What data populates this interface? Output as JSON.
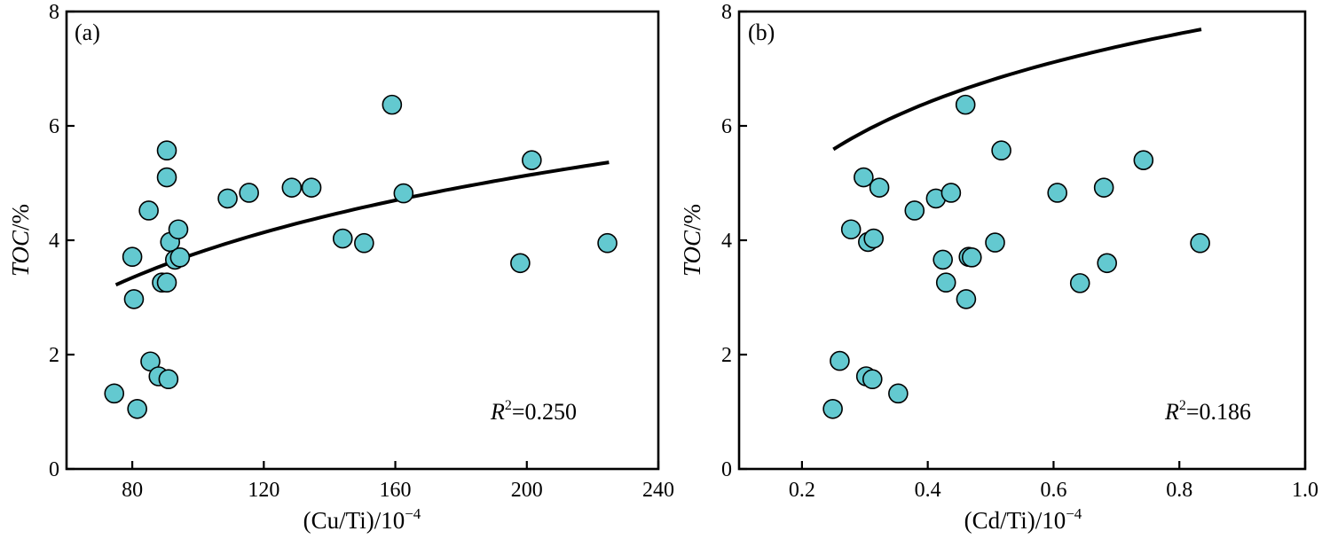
{
  "chart_data": [
    {
      "type": "scatter",
      "panel_label": "(a)",
      "xlabel": "(Cu/Ti)/10",
      "xlabel_exp": "−4",
      "ylabel_italic": "TOC",
      "ylabel_rest": "/%",
      "xlim": [
        60,
        240
      ],
      "ylim": [
        0,
        8
      ],
      "xticks": [
        80,
        120,
        160,
        200,
        240
      ],
      "yticks": [
        0,
        2,
        4,
        6,
        8
      ],
      "marker_color": "#63c9d0",
      "annotation": {
        "var": "R",
        "sup": "2",
        "text": "=0.250"
      },
      "points": [
        [
          74.5,
          1.32
        ],
        [
          80.0,
          3.71
        ],
        [
          80.5,
          2.97
        ],
        [
          81.5,
          1.05
        ],
        [
          85.0,
          4.52
        ],
        [
          85.5,
          1.88
        ],
        [
          88.0,
          1.62
        ],
        [
          89.0,
          3.26
        ],
        [
          90.5,
          5.57
        ],
        [
          90.5,
          5.1
        ],
        [
          90.5,
          3.26
        ],
        [
          91.0,
          1.57
        ],
        [
          91.5,
          3.97
        ],
        [
          93.0,
          3.66
        ],
        [
          94.0,
          4.19
        ],
        [
          94.5,
          3.7
        ],
        [
          109.0,
          4.73
        ],
        [
          115.5,
          4.83
        ],
        [
          128.5,
          4.92
        ],
        [
          134.5,
          4.92
        ],
        [
          144.0,
          4.03
        ],
        [
          150.5,
          3.95
        ],
        [
          159.0,
          6.37
        ],
        [
          162.5,
          4.82
        ],
        [
          198.0,
          3.6
        ],
        [
          201.5,
          5.4
        ],
        [
          224.5,
          3.95
        ]
      ],
      "fit": {
        "model": "log",
        "a": 3.22,
        "b": 1.95,
        "x0": 75,
        "x1": 225
      }
    },
    {
      "type": "scatter",
      "panel_label": "(b)",
      "xlabel": "(Cd/Ti)/10",
      "xlabel_exp": "−4",
      "ylabel_italic": "TOC",
      "ylabel_rest": "/%",
      "xlim": [
        0.1,
        1.0
      ],
      "ylim": [
        0,
        8
      ],
      "xticks": [
        "0.2",
        "0.4",
        "0.6",
        "0.8",
        "1.0"
      ],
      "yticks": [
        0,
        2,
        4,
        6,
        8
      ],
      "marker_color": "#63c9d0",
      "annotation": {
        "var": "R",
        "sup": "2",
        "text": "=0.186"
      },
      "points": [
        [
          0.249,
          1.05
        ],
        [
          0.26,
          1.89
        ],
        [
          0.278,
          4.19
        ],
        [
          0.298,
          5.1
        ],
        [
          0.302,
          1.62
        ],
        [
          0.305,
          3.97
        ],
        [
          0.312,
          1.57
        ],
        [
          0.314,
          4.03
        ],
        [
          0.323,
          4.92
        ],
        [
          0.353,
          1.32
        ],
        [
          0.379,
          4.52
        ],
        [
          0.413,
          4.73
        ],
        [
          0.424,
          3.66
        ],
        [
          0.429,
          3.26
        ],
        [
          0.437,
          4.83
        ],
        [
          0.46,
          6.37
        ],
        [
          0.461,
          2.97
        ],
        [
          0.465,
          3.71
        ],
        [
          0.47,
          3.7
        ],
        [
          0.507,
          3.96
        ],
        [
          0.517,
          5.57
        ],
        [
          0.606,
          4.83
        ],
        [
          0.642,
          3.25
        ],
        [
          0.68,
          4.92
        ],
        [
          0.685,
          3.6
        ],
        [
          0.743,
          5.4
        ],
        [
          0.833,
          3.95
        ]
      ],
      "fit": {
        "model": "log",
        "a": 5.59,
        "b": 1.74,
        "x0": 0.25,
        "x1": 0.835
      }
    }
  ]
}
